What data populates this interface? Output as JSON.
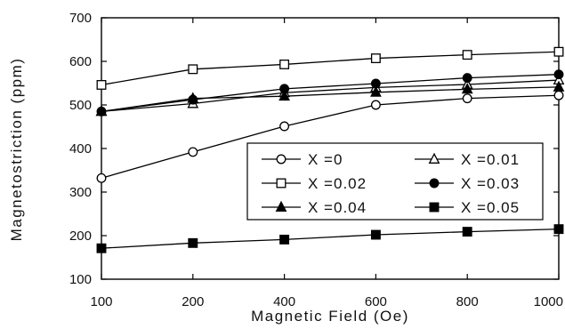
{
  "chart_data": {
    "type": "line",
    "xlabel": "Magnetic Field (Oe)",
    "ylabel": "Magnetostriction (ppm)",
    "x": [
      100,
      200,
      400,
      600,
      800,
      1000
    ],
    "xticks": [
      100,
      200,
      400,
      600,
      800,
      1000
    ],
    "xtick_labels": [
      "100",
      "200",
      "400",
      "600",
      "800",
      "1000"
    ],
    "ylim": [
      100,
      700
    ],
    "yticks": [
      100,
      200,
      300,
      400,
      500,
      600,
      700
    ],
    "ytick_labels": [
      "100",
      "200",
      "300",
      "400",
      "500",
      "600",
      "700"
    ],
    "x_axis_scale": "categorical (evenly spaced ticks)",
    "grid": false,
    "legend_position": "center-right (inside plot)",
    "series": [
      {
        "name": "X =0",
        "marker": "open-circle",
        "values": [
          332,
          392,
          451,
          500,
          515,
          522
        ]
      },
      {
        "name": "X =0.01",
        "marker": "open-triangle",
        "values": [
          485,
          503,
          528,
          540,
          547,
          557
        ]
      },
      {
        "name": "X =0.02",
        "marker": "open-square",
        "values": [
          546,
          582,
          593,
          607,
          615,
          622
        ]
      },
      {
        "name": "X =0.03",
        "marker": "filled-circle",
        "values": [
          485,
          512,
          537,
          549,
          562,
          570
        ]
      },
      {
        "name": "X =0.04",
        "marker": "filled-triangle",
        "values": [
          485,
          515,
          520,
          529,
          536,
          541
        ]
      },
      {
        "name": "X =0.05",
        "marker": "filled-square",
        "values": [
          171,
          183,
          191,
          202,
          209,
          215
        ]
      }
    ]
  }
}
